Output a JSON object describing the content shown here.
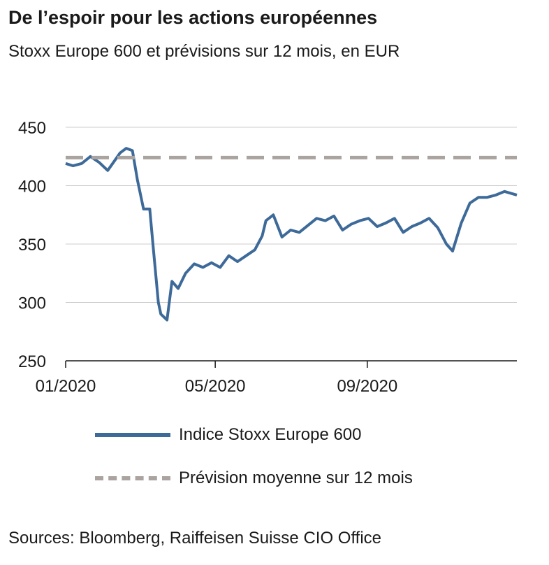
{
  "title": "De l’espoir pour les actions européennes",
  "subtitle": "Stoxx Europe 600 et prévisions sur 12 mois, en EUR",
  "source": "Sources: Bloomberg, Raiffeisen Suisse CIO Office",
  "colors": {
    "series": "#3d6a99",
    "forecast": "#aaa3a0",
    "grid": "#cccccc",
    "axis": "#1a1a1a"
  },
  "chart_data": {
    "type": "line",
    "title": "De l’espoir pour les actions européennes",
    "subtitle": "Stoxx Europe 600 et prévisions sur 12 mois, en EUR",
    "xlabel": "",
    "ylabel": "",
    "ylim": [
      250,
      450
    ],
    "y_ticks": [
      450,
      400,
      350,
      300,
      250
    ],
    "xlim": [
      "2020-01-01",
      "2020-12-31"
    ],
    "x_ticks": [
      {
        "date": "2020-01-01",
        "label": "01/2020"
      },
      {
        "date": "2020-05-01",
        "label": "05/2020"
      },
      {
        "date": "2020-09-01",
        "label": "09/2020"
      }
    ],
    "grid": true,
    "legend": "bottom",
    "series": [
      {
        "name": "Indice Stoxx Europe 600",
        "style": "solid",
        "x": [
          "2020-01-01",
          "2020-01-07",
          "2020-01-14",
          "2020-01-21",
          "2020-01-28",
          "2020-02-04",
          "2020-02-10",
          "2020-02-14",
          "2020-02-19",
          "2020-02-24",
          "2020-02-28",
          "2020-03-04",
          "2020-03-09",
          "2020-03-12",
          "2020-03-16",
          "2020-03-18",
          "2020-03-23",
          "2020-03-27",
          "2020-04-01",
          "2020-04-07",
          "2020-04-14",
          "2020-04-21",
          "2020-04-28",
          "2020-05-05",
          "2020-05-12",
          "2020-05-19",
          "2020-05-26",
          "2020-06-02",
          "2020-06-08",
          "2020-06-11",
          "2020-06-17",
          "2020-06-24",
          "2020-07-01",
          "2020-07-08",
          "2020-07-15",
          "2020-07-22",
          "2020-07-29",
          "2020-08-05",
          "2020-08-12",
          "2020-08-19",
          "2020-08-26",
          "2020-09-02",
          "2020-09-09",
          "2020-09-16",
          "2020-09-23",
          "2020-09-30",
          "2020-10-07",
          "2020-10-14",
          "2020-10-21",
          "2020-10-28",
          "2020-11-04",
          "2020-11-09",
          "2020-11-16",
          "2020-11-23",
          "2020-11-30",
          "2020-12-07",
          "2020-12-14",
          "2020-12-21",
          "2020-12-31"
        ],
        "values": [
          419,
          417,
          419,
          425,
          420,
          413,
          422,
          428,
          432,
          430,
          405,
          380,
          380,
          345,
          300,
          290,
          285,
          318,
          312,
          325,
          333,
          330,
          334,
          330,
          340,
          335,
          340,
          345,
          357,
          370,
          375,
          356,
          362,
          360,
          366,
          372,
          370,
          374,
          362,
          367,
          370,
          372,
          365,
          368,
          372,
          360,
          365,
          368,
          372,
          364,
          350,
          344,
          368,
          385,
          390,
          390,
          392,
          395,
          392
        ]
      },
      {
        "name": "Prévision moyenne sur 12 mois",
        "style": "dashed",
        "x": [
          "2020-01-01",
          "2020-12-31"
        ],
        "values": [
          424,
          424
        ]
      }
    ]
  }
}
